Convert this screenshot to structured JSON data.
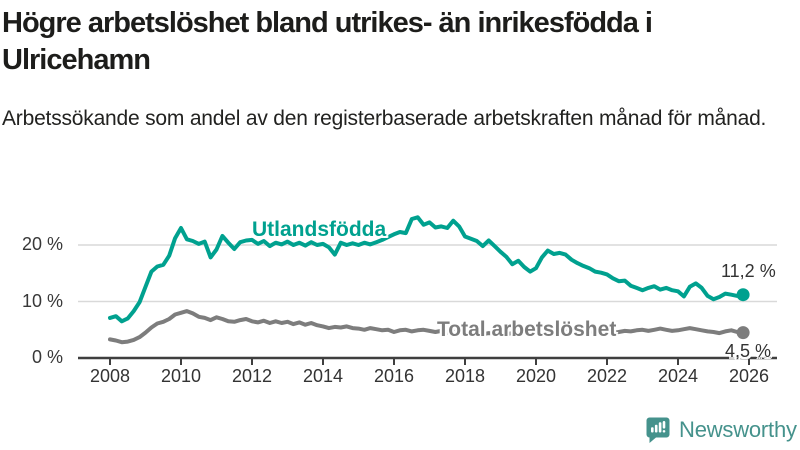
{
  "chart_data": {
    "type": "line",
    "title": "Högre arbetslöshet bland utrikes- än inrikesfödda i Ulricehamn",
    "subtitle": "Arbetssökande som andel av den registerbaserade arbetskraften månad för månad.",
    "xlim": [
      2008,
      2026
    ],
    "ylim": [
      0,
      27
    ],
    "grid": "horizontal",
    "x_start_year": 2008,
    "x_step_months": 2,
    "x_ticks": [
      "2008",
      "2010",
      "2012",
      "2014",
      "2016",
      "2018",
      "2020",
      "2022",
      "2024",
      "2026"
    ],
    "y_ticks": [
      {
        "label": "20 %",
        "value": 20
      },
      {
        "label": "10 %",
        "value": 10
      },
      {
        "label": "0 %",
        "value": 0
      }
    ],
    "series": [
      {
        "name": "Utlandsfödda",
        "color": "#00a18f",
        "end_label": "11,2 %",
        "end_value": 11.2,
        "values": [
          7.1,
          7.4,
          6.5,
          7.0,
          8.3,
          9.9,
          12.6,
          15.3,
          16.2,
          16.5,
          18.1,
          21.2,
          23.0,
          21.0,
          20.7,
          20.2,
          20.6,
          17.8,
          19.2,
          21.6,
          20.4,
          19.3,
          20.5,
          20.8,
          20.9,
          20.2,
          20.7,
          19.8,
          20.4,
          20.1,
          20.6,
          20.0,
          20.4,
          19.9,
          20.5,
          20.0,
          20.2,
          19.6,
          18.3,
          20.4,
          20.0,
          20.3,
          20.0,
          20.4,
          20.1,
          20.5,
          20.9,
          21.4,
          21.9,
          22.3,
          22.1,
          24.6,
          24.9,
          23.6,
          24.0,
          23.1,
          23.3,
          23.0,
          24.3,
          23.3,
          21.5,
          21.1,
          20.7,
          19.8,
          20.8,
          19.8,
          18.8,
          17.9,
          16.6,
          17.2,
          16.1,
          15.3,
          15.9,
          17.8,
          19.0,
          18.4,
          18.6,
          18.3,
          17.4,
          16.8,
          16.3,
          15.9,
          15.3,
          15.1,
          14.8,
          14.1,
          13.6,
          13.7,
          12.8,
          12.4,
          12.0,
          12.4,
          12.7,
          12.1,
          12.4,
          12.0,
          11.8,
          10.9,
          12.6,
          13.2,
          12.4,
          11.0,
          10.4,
          10.8,
          11.4,
          11.2,
          11.0,
          11.2
        ]
      },
      {
        "name": "Total arbetslöshet",
        "color": "#7d7d7d",
        "end_label": "4,5 %",
        "end_value": 4.5,
        "values": [
          3.3,
          3.1,
          2.8,
          2.9,
          3.2,
          3.7,
          4.5,
          5.4,
          6.1,
          6.4,
          6.9,
          7.7,
          8.0,
          8.3,
          7.9,
          7.3,
          7.1,
          6.7,
          7.2,
          6.9,
          6.5,
          6.4,
          6.7,
          6.9,
          6.5,
          6.3,
          6.6,
          6.2,
          6.5,
          6.2,
          6.4,
          6.0,
          6.3,
          5.9,
          6.2,
          5.8,
          5.6,
          5.3,
          5.5,
          5.4,
          5.6,
          5.3,
          5.2,
          5.0,
          5.3,
          5.1,
          4.9,
          5.0,
          4.6,
          4.9,
          5.0,
          4.7,
          4.9,
          5.0,
          4.8,
          4.6,
          4.8,
          4.5,
          4.7,
          4.4,
          4.5,
          4.3,
          4.5,
          4.2,
          4.4,
          4.3,
          4.4,
          4.2,
          4.4,
          4.3,
          4.5,
          4.4,
          4.6,
          5.2,
          5.5,
          5.3,
          5.4,
          5.2,
          5.3,
          5.0,
          4.9,
          4.7,
          4.6,
          4.5,
          4.6,
          4.4,
          4.6,
          4.8,
          4.7,
          4.9,
          5.0,
          4.8,
          5.0,
          5.2,
          5.0,
          4.8,
          4.9,
          5.1,
          5.3,
          5.1,
          4.9,
          4.7,
          4.6,
          4.4,
          4.7,
          4.9,
          4.6,
          4.5
        ]
      }
    ],
    "colors": {
      "gridline": "#d9d9d9",
      "axis": "#3f3f3f",
      "tick_text": "#333333"
    }
  },
  "logo": {
    "name": "Newsworthy",
    "icon": "newsworthy-speech-bubble-bar-chart-icon",
    "color": "#45928c"
  }
}
